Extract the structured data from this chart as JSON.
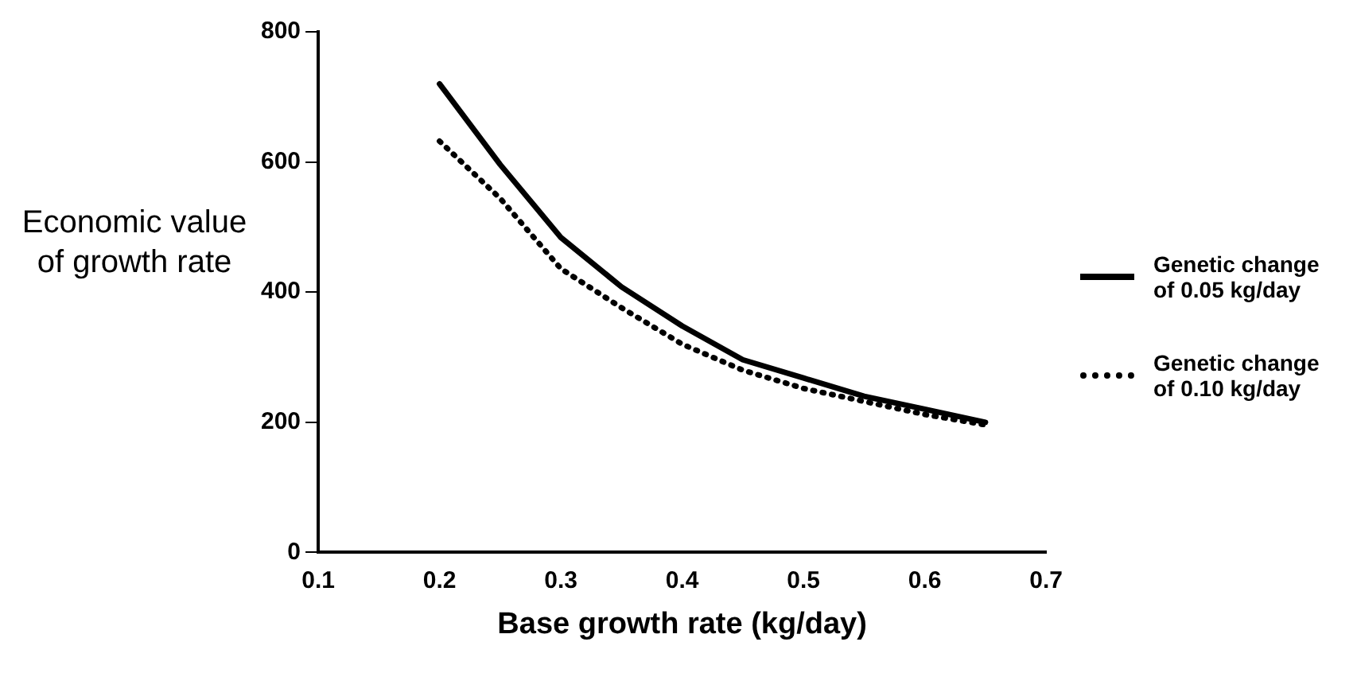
{
  "chart_data": {
    "type": "line",
    "xlabel": "Base growth rate (kg/day)",
    "ylabel": "Economic value of growth rate",
    "xlim": [
      0.1,
      0.7
    ],
    "xticks": [
      0.1,
      0.2,
      0.3,
      0.4,
      0.5,
      0.6,
      0.7
    ],
    "ylim": [
      0,
      800
    ],
    "yticks": [
      0,
      200,
      400,
      600,
      800
    ],
    "grid": false,
    "legend": "right",
    "marker": "none",
    "series": [
      {
        "name": "Genetic change of 0.05 kg/day",
        "color": "#000000",
        "line_style": "solid",
        "x": [
          0.2,
          0.25,
          0.3,
          0.35,
          0.4,
          0.45,
          0.5,
          0.55,
          0.6,
          0.65
        ],
        "values": [
          720,
          596,
          484,
          408,
          348,
          296,
          268,
          240,
          220,
          200
        ]
      },
      {
        "name": "Genetic change of 0.10 kg/day",
        "color": "#000000",
        "line_style": "dotted",
        "x": [
          0.2,
          0.25,
          0.3,
          0.35,
          0.4,
          0.45,
          0.5,
          0.55,
          0.6,
          0.65
        ],
        "values": [
          632,
          544,
          436,
          376,
          320,
          280,
          252,
          232,
          212,
          196
        ]
      }
    ]
  }
}
